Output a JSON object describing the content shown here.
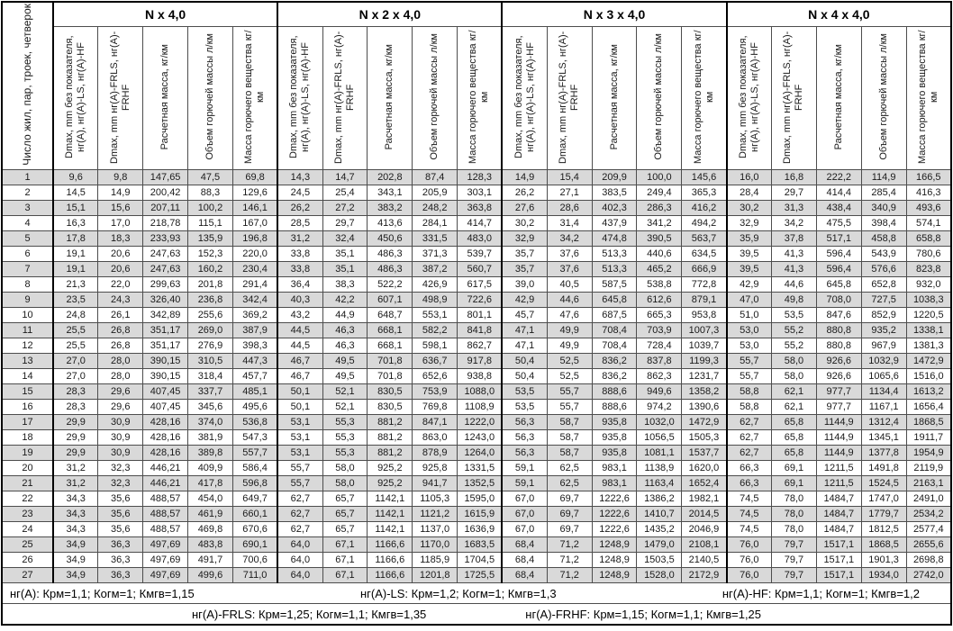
{
  "table": {
    "corner_header": "Число жил, пар, троек, четверок",
    "groups": [
      "N x 4,0",
      "N x 2 x 4,0",
      "N x 3 x 4,0",
      "N x 4 x 4,0"
    ],
    "col_headers": [
      "Dmax, mm без показателя, нг(A), нг(A)-LS, нг(A)-HF",
      "Dmax, mm нг(A)-FRLS, нг(A)-FRHF",
      "Расчетная масса, кг/км",
      "Объем горючей массы л/км",
      "Масса горючего вещества кг/км"
    ],
    "stripe_color": "#d9d9d9",
    "rows": [
      {
        "n": "1",
        "cells": [
          "9,6",
          "9,8",
          "147,65",
          "47,5",
          "69,8",
          "14,3",
          "14,7",
          "202,8",
          "87,4",
          "128,3",
          "14,9",
          "15,4",
          "209,9",
          "100,0",
          "145,6",
          "16,0",
          "16,8",
          "222,2",
          "114,9",
          "166,5"
        ]
      },
      {
        "n": "2",
        "cells": [
          "14,5",
          "14,9",
          "200,42",
          "88,3",
          "129,6",
          "24,5",
          "25,4",
          "343,1",
          "205,9",
          "303,1",
          "26,2",
          "27,1",
          "383,5",
          "249,4",
          "365,3",
          "28,4",
          "29,7",
          "414,4",
          "285,4",
          "416,3"
        ]
      },
      {
        "n": "3",
        "cells": [
          "15,1",
          "15,6",
          "207,11",
          "100,2",
          "146,1",
          "26,2",
          "27,2",
          "383,2",
          "248,2",
          "363,8",
          "27,6",
          "28,6",
          "402,3",
          "286,3",
          "416,2",
          "30,2",
          "31,3",
          "438,4",
          "340,9",
          "493,6"
        ]
      },
      {
        "n": "4",
        "cells": [
          "16,3",
          "17,0",
          "218,78",
          "115,1",
          "167,0",
          "28,5",
          "29,7",
          "413,6",
          "284,1",
          "414,7",
          "30,2",
          "31,4",
          "437,9",
          "341,2",
          "494,2",
          "32,9",
          "34,2",
          "475,5",
          "398,4",
          "574,1"
        ]
      },
      {
        "n": "5",
        "cells": [
          "17,8",
          "18,3",
          "233,93",
          "135,9",
          "196,8",
          "31,2",
          "32,4",
          "450,6",
          "331,5",
          "483,0",
          "32,9",
          "34,2",
          "474,8",
          "390,5",
          "563,7",
          "35,9",
          "37,8",
          "517,1",
          "458,8",
          "658,8"
        ]
      },
      {
        "n": "6",
        "cells": [
          "19,1",
          "20,6",
          "247,63",
          "152,3",
          "220,0",
          "33,8",
          "35,1",
          "486,3",
          "371,3",
          "539,7",
          "35,7",
          "37,6",
          "513,3",
          "440,6",
          "634,5",
          "39,5",
          "41,3",
          "596,4",
          "543,9",
          "780,6"
        ]
      },
      {
        "n": "7",
        "cells": [
          "19,1",
          "20,6",
          "247,63",
          "160,2",
          "230,4",
          "33,8",
          "35,1",
          "486,3",
          "387,2",
          "560,7",
          "35,7",
          "37,6",
          "513,3",
          "465,2",
          "666,9",
          "39,5",
          "41,3",
          "596,4",
          "576,6",
          "823,8"
        ]
      },
      {
        "n": "8",
        "cells": [
          "21,3",
          "22,0",
          "299,63",
          "201,8",
          "291,4",
          "36,4",
          "38,3",
          "522,2",
          "426,9",
          "617,5",
          "39,0",
          "40,5",
          "587,5",
          "538,8",
          "772,8",
          "42,9",
          "44,6",
          "645,8",
          "652,8",
          "932,0"
        ]
      },
      {
        "n": "9",
        "cells": [
          "23,5",
          "24,3",
          "326,40",
          "236,8",
          "342,4",
          "40,3",
          "42,2",
          "607,1",
          "498,9",
          "722,6",
          "42,9",
          "44,6",
          "645,8",
          "612,6",
          "879,1",
          "47,0",
          "49,8",
          "708,0",
          "727,5",
          "1038,3"
        ]
      },
      {
        "n": "10",
        "cells": [
          "24,8",
          "26,1",
          "342,89",
          "255,6",
          "369,2",
          "43,2",
          "44,9",
          "648,7",
          "553,1",
          "801,1",
          "45,7",
          "47,6",
          "687,5",
          "665,3",
          "953,8",
          "51,0",
          "53,5",
          "847,6",
          "852,9",
          "1220,5"
        ]
      },
      {
        "n": "11",
        "cells": [
          "25,5",
          "26,8",
          "351,17",
          "269,0",
          "387,9",
          "44,5",
          "46,3",
          "668,1",
          "582,2",
          "841,8",
          "47,1",
          "49,9",
          "708,4",
          "703,9",
          "1007,3",
          "53,0",
          "55,2",
          "880,8",
          "935,2",
          "1338,1"
        ]
      },
      {
        "n": "12",
        "cells": [
          "25,5",
          "26,8",
          "351,17",
          "276,9",
          "398,3",
          "44,5",
          "46,3",
          "668,1",
          "598,1",
          "862,7",
          "47,1",
          "49,9",
          "708,4",
          "728,4",
          "1039,7",
          "53,0",
          "55,2",
          "880,8",
          "967,9",
          "1381,3"
        ]
      },
      {
        "n": "13",
        "cells": [
          "27,0",
          "28,0",
          "390,15",
          "310,5",
          "447,3",
          "46,7",
          "49,5",
          "701,8",
          "636,7",
          "917,8",
          "50,4",
          "52,5",
          "836,2",
          "837,8",
          "1199,3",
          "55,7",
          "58,0",
          "926,6",
          "1032,9",
          "1472,9"
        ]
      },
      {
        "n": "14",
        "cells": [
          "27,0",
          "28,0",
          "390,15",
          "318,4",
          "457,7",
          "46,7",
          "49,5",
          "701,8",
          "652,6",
          "938,8",
          "50,4",
          "52,5",
          "836,2",
          "862,3",
          "1231,7",
          "55,7",
          "58,0",
          "926,6",
          "1065,6",
          "1516,0"
        ]
      },
      {
        "n": "15",
        "cells": [
          "28,3",
          "29,6",
          "407,45",
          "337,7",
          "485,1",
          "50,1",
          "52,1",
          "830,5",
          "753,9",
          "1088,0",
          "53,5",
          "55,7",
          "888,6",
          "949,6",
          "1358,2",
          "58,8",
          "62,1",
          "977,7",
          "1134,4",
          "1613,2"
        ]
      },
      {
        "n": "16",
        "cells": [
          "28,3",
          "29,6",
          "407,45",
          "345,6",
          "495,6",
          "50,1",
          "52,1",
          "830,5",
          "769,8",
          "1108,9",
          "53,5",
          "55,7",
          "888,6",
          "974,2",
          "1390,6",
          "58,8",
          "62,1",
          "977,7",
          "1167,1",
          "1656,4"
        ]
      },
      {
        "n": "17",
        "cells": [
          "29,9",
          "30,9",
          "428,16",
          "374,0",
          "536,8",
          "53,1",
          "55,3",
          "881,2",
          "847,1",
          "1222,0",
          "56,3",
          "58,7",
          "935,8",
          "1032,0",
          "1472,9",
          "62,7",
          "65,8",
          "1144,9",
          "1312,4",
          "1868,5"
        ]
      },
      {
        "n": "18",
        "cells": [
          "29,9",
          "30,9",
          "428,16",
          "381,9",
          "547,3",
          "53,1",
          "55,3",
          "881,2",
          "863,0",
          "1243,0",
          "56,3",
          "58,7",
          "935,8",
          "1056,5",
          "1505,3",
          "62,7",
          "65,8",
          "1144,9",
          "1345,1",
          "1911,7"
        ]
      },
      {
        "n": "19",
        "cells": [
          "29,9",
          "30,9",
          "428,16",
          "389,8",
          "557,7",
          "53,1",
          "55,3",
          "881,2",
          "878,9",
          "1264,0",
          "56,3",
          "58,7",
          "935,8",
          "1081,1",
          "1537,7",
          "62,7",
          "65,8",
          "1144,9",
          "1377,8",
          "1954,9"
        ]
      },
      {
        "n": "20",
        "cells": [
          "31,2",
          "32,3",
          "446,21",
          "409,9",
          "586,4",
          "55,7",
          "58,0",
          "925,2",
          "925,8",
          "1331,5",
          "59,1",
          "62,5",
          "983,1",
          "1138,9",
          "1620,0",
          "66,3",
          "69,1",
          "1211,5",
          "1491,8",
          "2119,9"
        ]
      },
      {
        "n": "21",
        "cells": [
          "31,2",
          "32,3",
          "446,21",
          "417,8",
          "596,8",
          "55,7",
          "58,0",
          "925,2",
          "941,7",
          "1352,5",
          "59,1",
          "62,5",
          "983,1",
          "1163,4",
          "1652,4",
          "66,3",
          "69,1",
          "1211,5",
          "1524,5",
          "2163,1"
        ]
      },
      {
        "n": "22",
        "cells": [
          "34,3",
          "35,6",
          "488,57",
          "454,0",
          "649,7",
          "62,7",
          "65,7",
          "1142,1",
          "1105,3",
          "1595,0",
          "67,0",
          "69,7",
          "1222,6",
          "1386,2",
          "1982,1",
          "74,5",
          "78,0",
          "1484,7",
          "1747,0",
          "2491,0"
        ]
      },
      {
        "n": "23",
        "cells": [
          "34,3",
          "35,6",
          "488,57",
          "461,9",
          "660,1",
          "62,7",
          "65,7",
          "1142,1",
          "1121,2",
          "1615,9",
          "67,0",
          "69,7",
          "1222,6",
          "1410,7",
          "2014,5",
          "74,5",
          "78,0",
          "1484,7",
          "1779,7",
          "2534,2"
        ]
      },
      {
        "n": "24",
        "cells": [
          "34,3",
          "35,6",
          "488,57",
          "469,8",
          "670,6",
          "62,7",
          "65,7",
          "1142,1",
          "1137,0",
          "1636,9",
          "67,0",
          "69,7",
          "1222,6",
          "1435,2",
          "2046,9",
          "74,5",
          "78,0",
          "1484,7",
          "1812,5",
          "2577,4"
        ]
      },
      {
        "n": "25",
        "cells": [
          "34,9",
          "36,3",
          "497,69",
          "483,8",
          "690,1",
          "64,0",
          "67,1",
          "1166,6",
          "1170,0",
          "1683,5",
          "68,4",
          "71,2",
          "1248,9",
          "1479,0",
          "2108,1",
          "76,0",
          "79,7",
          "1517,1",
          "1868,5",
          "2655,6"
        ]
      },
      {
        "n": "26",
        "cells": [
          "34,9",
          "36,3",
          "497,69",
          "491,7",
          "700,6",
          "64,0",
          "67,1",
          "1166,6",
          "1185,9",
          "1704,5",
          "68,4",
          "71,2",
          "1248,9",
          "1503,5",
          "2140,5",
          "76,0",
          "79,7",
          "1517,1",
          "1901,3",
          "2698,8"
        ]
      },
      {
        "n": "27",
        "cells": [
          "34,9",
          "36,3",
          "497,69",
          "499,6",
          "711,0",
          "64,0",
          "67,1",
          "1166,6",
          "1201,8",
          "1725,5",
          "68,4",
          "71,2",
          "1248,9",
          "1528,0",
          "2172,9",
          "76,0",
          "79,7",
          "1517,1",
          "1934,0",
          "2742,0"
        ]
      }
    ],
    "footnotes": {
      "line1": [
        "нг(A): Крм=1,1;  Когм=1;  Кмгв=1,15",
        "нг(A)-LS: Крм=1,2;  Когм=1;  Кмгв=1,3",
        "нг(A)-HF: Крм=1,1;  Когм=1;  Кмгв=1,2"
      ],
      "line2": [
        "нг(A)-FRLS: Крм=1,25;  Когм=1,1;  Кмгв=1,35",
        "нг(A)-FRHF: Крм=1,15;  Когм=1,1;  Кмгв=1,25"
      ]
    }
  }
}
